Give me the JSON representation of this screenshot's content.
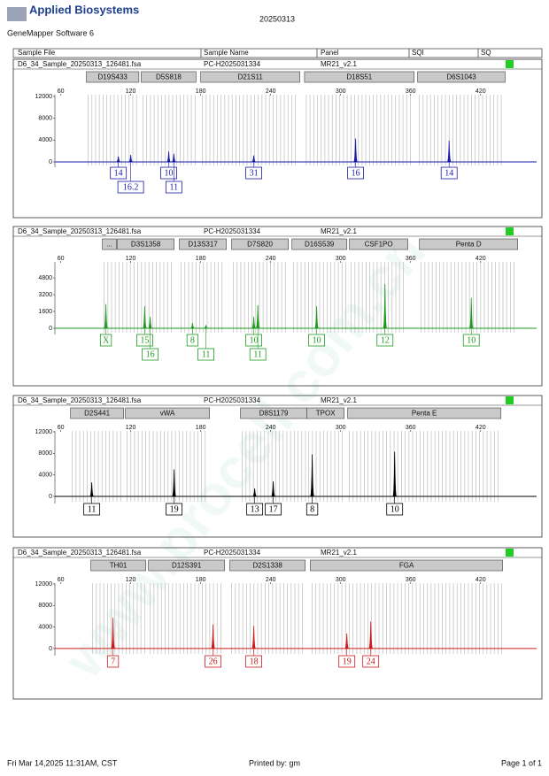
{
  "header": {
    "logo": "Applied Biosystems",
    "software": "GeneMapper Software 6",
    "date": "20250313"
  },
  "columns": [
    "Sample File",
    "Sample Name",
    "Panel",
    "SQI",
    "SQ"
  ],
  "watermark": "www.procell.com.cn",
  "chart_data": [
    {
      "type": "electropherogram",
      "sample_file": "D6_34_Sample_20250313_126481.fsa",
      "sample_name": "PC-H2025031334",
      "panel": "MR21_v2.1",
      "color": "#1a1aa8",
      "xlim": [
        55,
        468
      ],
      "xticks": [
        60,
        120,
        180,
        240,
        300,
        360,
        420
      ],
      "ylim": [
        -970,
        12320
      ],
      "yticks": [
        0,
        4000,
        8000,
        12000
      ],
      "markers": [
        {
          "name": "D19S433",
          "range": [
            82,
            127
          ]
        },
        {
          "name": "D5S818",
          "range": [
            129,
            176
          ]
        },
        {
          "name": "D21S11",
          "range": [
            180,
            265
          ]
        },
        {
          "name": "D18S51",
          "range": [
            269,
            363
          ]
        },
        {
          "name": "D6S1043",
          "range": [
            366,
            441
          ]
        }
      ],
      "x": [
        109.4,
        120,
        152.6,
        157,
        225.5,
        312.8,
        393
      ],
      "values": [
        1000,
        1300,
        1900,
        1500,
        1200,
        4300,
        3900
      ],
      "alleles": [
        "14",
        "16.2",
        "10",
        "11",
        "31",
        "16",
        "14"
      ]
    },
    {
      "type": "electropherogram",
      "sample_file": "D6_34_Sample_20250313_126481.fsa",
      "sample_name": "PC-H2025031334",
      "panel": "MR21_v2.1",
      "color": "#1e9a1e",
      "xlim": [
        55,
        468
      ],
      "xticks": [
        60,
        120,
        180,
        240,
        300,
        360,
        420
      ],
      "ylim": [
        -590,
        6320
      ],
      "yticks": [
        0,
        1600,
        3200,
        4800
      ],
      "markers": [
        {
          "name": "...",
          "range": [
            95.7,
            107.8
          ]
        },
        {
          "name": "D3S1358",
          "range": [
            108.6,
            157.2
          ]
        },
        {
          "name": "D13S317",
          "range": [
            161.7,
            202
          ]
        },
        {
          "name": "D7S820",
          "range": [
            206.5,
            255.1
          ]
        },
        {
          "name": "D16S539",
          "range": [
            258.2,
            305.3
          ]
        },
        {
          "name": "CSF1PO",
          "range": [
            307.5,
            357.6
          ]
        },
        {
          "name": "Penta D",
          "range": [
            367.5,
            451.8
          ]
        }
      ],
      "x": [
        98.7,
        132,
        136.7,
        173,
        184.5,
        225.5,
        229,
        279.4,
        338,
        412
      ],
      "values": [
        2300,
        2100,
        1100,
        500,
        300,
        1100,
        2200,
        2100,
        4200,
        2900
      ],
      "alleles": [
        "X",
        "15",
        "16",
        "8",
        "11",
        "10",
        "11",
        "10",
        "12",
        "10"
      ]
    },
    {
      "type": "electropherogram",
      "sample_file": "D6_34_Sample_20250313_126481.fsa",
      "sample_name": "PC-H2025031334",
      "panel": "MR21_v2.1",
      "color": "#000000",
      "xlim": [
        55,
        468
      ],
      "xticks": [
        60,
        120,
        180,
        240,
        300,
        360,
        420
      ],
      "ylim": [
        -1320,
        12160
      ],
      "yticks": [
        0,
        4000,
        8000,
        12000
      ],
      "markers": [
        {
          "name": "D2S441",
          "range": [
            68.4,
            113.9
          ]
        },
        {
          "name": "vWA",
          "range": [
            115.4,
            187.6
          ]
        },
        {
          "name": "D8S1179",
          "range": [
            214.1,
            271.1
          ]
        },
        {
          "name": "TPOX",
          "range": [
            271.1,
            303
          ]
        },
        {
          "name": "Penta E",
          "range": [
            306,
            437.4
          ]
        }
      ],
      "x": [
        86.6,
        157.2,
        226.3,
        242.2,
        275.6,
        346.3
      ],
      "values": [
        2600,
        5000,
        1500,
        2800,
        7800,
        8300
      ],
      "alleles": [
        "11",
        "19",
        "13",
        "17",
        "8",
        "10"
      ]
    },
    {
      "type": "electropherogram",
      "sample_file": "D6_34_Sample_20250313_126481.fsa",
      "sample_name": "PC-H2025031334",
      "panel": "MR21_v2.1",
      "color": "#cc1a1a",
      "xlim": [
        55,
        468
      ],
      "xticks": [
        60,
        120,
        180,
        240,
        300,
        360,
        420
      ],
      "ylim": [
        -1330,
        12170
      ],
      "yticks": [
        0,
        4000,
        8000,
        12000
      ],
      "markers": [
        {
          "name": "TH01",
          "range": [
            85.8,
            132.9
          ]
        },
        {
          "name": "D12S391",
          "range": [
            135.2,
            200.5
          ]
        },
        {
          "name": "D2S1338",
          "range": [
            205,
            269.6
          ]
        },
        {
          "name": "FGA",
          "range": [
            274,
            438.9
          ]
        }
      ],
      "x": [
        104.8,
        190.6,
        225.5,
        305.3,
        325.8
      ],
      "values": [
        5700,
        4500,
        4200,
        2800,
        5000
      ],
      "alleles": [
        "7",
        "26",
        "18",
        "19",
        "24"
      ]
    }
  ],
  "footer": {
    "printed_at": "Fri Mar 14,2025 11:31AM, CST",
    "printed_by": "Printed by: gm",
    "page": "Page 1 of 1"
  }
}
